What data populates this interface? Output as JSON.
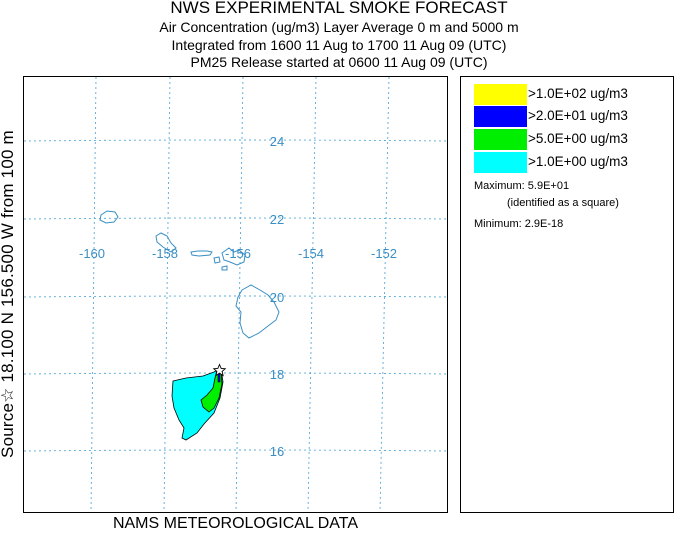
{
  "header": {
    "title": "NWS EXPERIMENTAL SMOKE FORECAST",
    "line1": "Air Concentration (ug/m3) Layer Average    0 m and  5000 m",
    "line2": "Integrated from 1600 11 Aug to 1700 11 Aug 09 (UTC)",
    "line3": "PM25 Release started at 0600 11 Aug 09 (UTC)"
  },
  "side_label": "Source☆ 18.100  N 156.500  W    from  100 m",
  "footer": "NAMS METEOROLOGICAL DATA",
  "map": {
    "lon_ticks": [
      "-160",
      "-158",
      "-156",
      "-154",
      "-152"
    ],
    "lat_ticks": [
      "24",
      "22",
      "20",
      "18",
      "16"
    ],
    "source_marker": "star-icon",
    "colors": {
      "graticule": "#5aa9d6",
      "coast": "#3a8fc4",
      "label": "#3a8fc4"
    }
  },
  "legend": {
    "items": [
      {
        "label": ">1.0E+02 ug/m3",
        "color": "#ffff00"
      },
      {
        "label": ">2.0E+01 ug/m3",
        "color": "#0000ff"
      },
      {
        "label": ">5.0E+00 ug/m3",
        "color": "#00ee00"
      },
      {
        "label": ">1.0E+00 ug/m3",
        "color": "#00ffff"
      }
    ],
    "maximum": "Maximum: 5.9E+01",
    "maximum_note": "(identified as a square)",
    "minimum": "Minimum: 2.9E-18"
  }
}
